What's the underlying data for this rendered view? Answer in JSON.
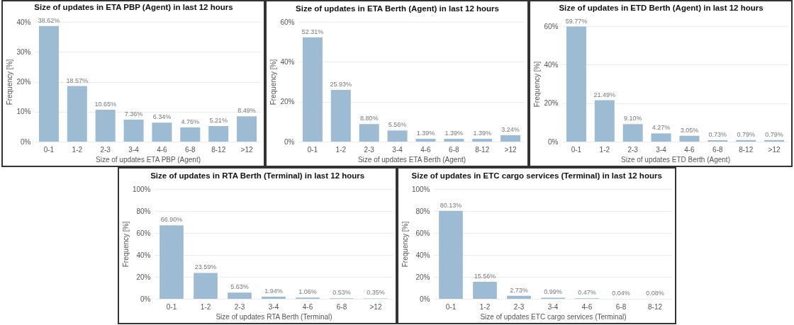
{
  "chart_data": [
    {
      "type": "bar",
      "title": "Size of updates in ETA PBP (Agent) in last 12 hours",
      "xlabel": "Size of updates ETA PBP (Agent)",
      "ylabel": "Frequency [%]",
      "categories": [
        "0-1",
        "1-2",
        "2-3",
        "3-4",
        "4-6",
        "6-8",
        "8-12",
        ">12"
      ],
      "values": [
        38.62,
        18.57,
        10.65,
        7.36,
        6.34,
        4.76,
        5.21,
        8.49
      ],
      "value_labels": [
        "38.62%",
        "18.57%",
        "10.65%",
        "7.36%",
        "6.34%",
        "4.76%",
        "5.21%",
        "8.49%"
      ],
      "color": "#9dbcd4",
      "ylim": [
        0,
        40
      ],
      "yticks": [
        {
          "value": 0,
          "label": "0%"
        },
        {
          "value": 10,
          "label": "10%"
        },
        {
          "value": 20,
          "label": "20%"
        },
        {
          "value": 30,
          "label": "30%"
        },
        {
          "value": 40,
          "label": "40%"
        }
      ],
      "grid": "y"
    },
    {
      "type": "bar",
      "title": "Size of updates in ETA Berth (Agent) in last 12 hours",
      "xlabel": "Size of updates ETA Berth (Agent)",
      "ylabel": "Frequency [%]",
      "categories": [
        "0-1",
        "1-2",
        "2-3",
        "3-4",
        "4-6",
        "6-8",
        "8-12",
        ">12"
      ],
      "values": [
        52.31,
        25.93,
        8.8,
        5.56,
        1.39,
        1.39,
        1.39,
        3.24
      ],
      "value_labels": [
        "52.31%",
        "25.93%",
        "8.80%",
        "5.56%",
        "1.39%",
        "1.39%",
        "1.39%",
        "3.24%"
      ],
      "color": "#9dbcd4",
      "ylim": [
        0,
        60
      ],
      "yticks": [
        {
          "value": 0,
          "label": "0%"
        },
        {
          "value": 20,
          "label": "20%"
        },
        {
          "value": 40,
          "label": "40%"
        },
        {
          "value": 60,
          "label": "60%"
        }
      ],
      "grid": "y"
    },
    {
      "type": "bar",
      "title": "Size of updates in ETD Berth (Agent) in last 12 hours",
      "xlabel": "Size of updates ETD Berth (Agent)",
      "ylabel": "Frequency [%]",
      "categories": [
        "0-1",
        "1-2",
        "2-3",
        "3-4",
        "4-6",
        "6-8",
        "8-12",
        ">12"
      ],
      "values": [
        59.77,
        21.49,
        9.1,
        4.27,
        3.05,
        0.73,
        0.79,
        0.79
      ],
      "value_labels": [
        "59.77%",
        "21.49%",
        "9.10%",
        "4.27%",
        "3.05%",
        "0.73%",
        "0.79%",
        "0.79%"
      ],
      "color": "#9dbcd4",
      "ylim": [
        0,
        60
      ],
      "yticks": [
        {
          "value": 0,
          "label": "0%"
        },
        {
          "value": 20,
          "label": "20%"
        },
        {
          "value": 40,
          "label": "40%"
        },
        {
          "value": 60,
          "label": "60%"
        }
      ],
      "grid": "y"
    },
    {
      "type": "bar",
      "title": "Size of updates in RTA Berth (Terminal) in last 12 hours",
      "xlabel": "Size of updates RTA Berth (Terminal)",
      "ylabel": "Frequency [%]",
      "categories": [
        "0-1",
        "1-2",
        "2-3",
        "3-4",
        "4-6",
        "6-8",
        ">12"
      ],
      "values": [
        66.9,
        23.59,
        5.63,
        1.94,
        1.06,
        0.53,
        0.35
      ],
      "value_labels": [
        "66.90%",
        "23.59%",
        "5.63%",
        "1.94%",
        "1.06%",
        "0.53%",
        "0.35%"
      ],
      "color": "#9dbcd4",
      "ylim": [
        0,
        100
      ],
      "yticks": [
        {
          "value": 0,
          "label": "0%"
        },
        {
          "value": 20,
          "label": "20%"
        },
        {
          "value": 40,
          "label": "40%"
        },
        {
          "value": 60,
          "label": "60%"
        },
        {
          "value": 80,
          "label": "80%"
        },
        {
          "value": 100,
          "label": "100%"
        }
      ],
      "grid": "y"
    },
    {
      "type": "bar",
      "title": "Size of updates in ETC cargo services (Terminal) in last 12 hours",
      "xlabel": "Size of updates ETC cargo services (Terminal)",
      "ylabel": "Frequency [%]",
      "categories": [
        "0-1",
        "1-2",
        "2-3",
        "3-4",
        "4-6",
        "6-8",
        "8-12"
      ],
      "values": [
        80.13,
        15.56,
        2.73,
        0.99,
        0.47,
        0.04,
        0.08
      ],
      "value_labels": [
        "80.13%",
        "15.56%",
        "2.73%",
        "0.99%",
        "0.47%",
        "0.04%",
        "0.08%"
      ],
      "color": "#9dbcd4",
      "ylim": [
        0,
        100
      ],
      "yticks": [
        {
          "value": 0,
          "label": "0%"
        },
        {
          "value": 20,
          "label": "20%"
        },
        {
          "value": 40,
          "label": "40%"
        },
        {
          "value": 60,
          "label": "60%"
        },
        {
          "value": 80,
          "label": "80%"
        },
        {
          "value": 100,
          "label": "100%"
        }
      ],
      "grid": "y"
    }
  ]
}
